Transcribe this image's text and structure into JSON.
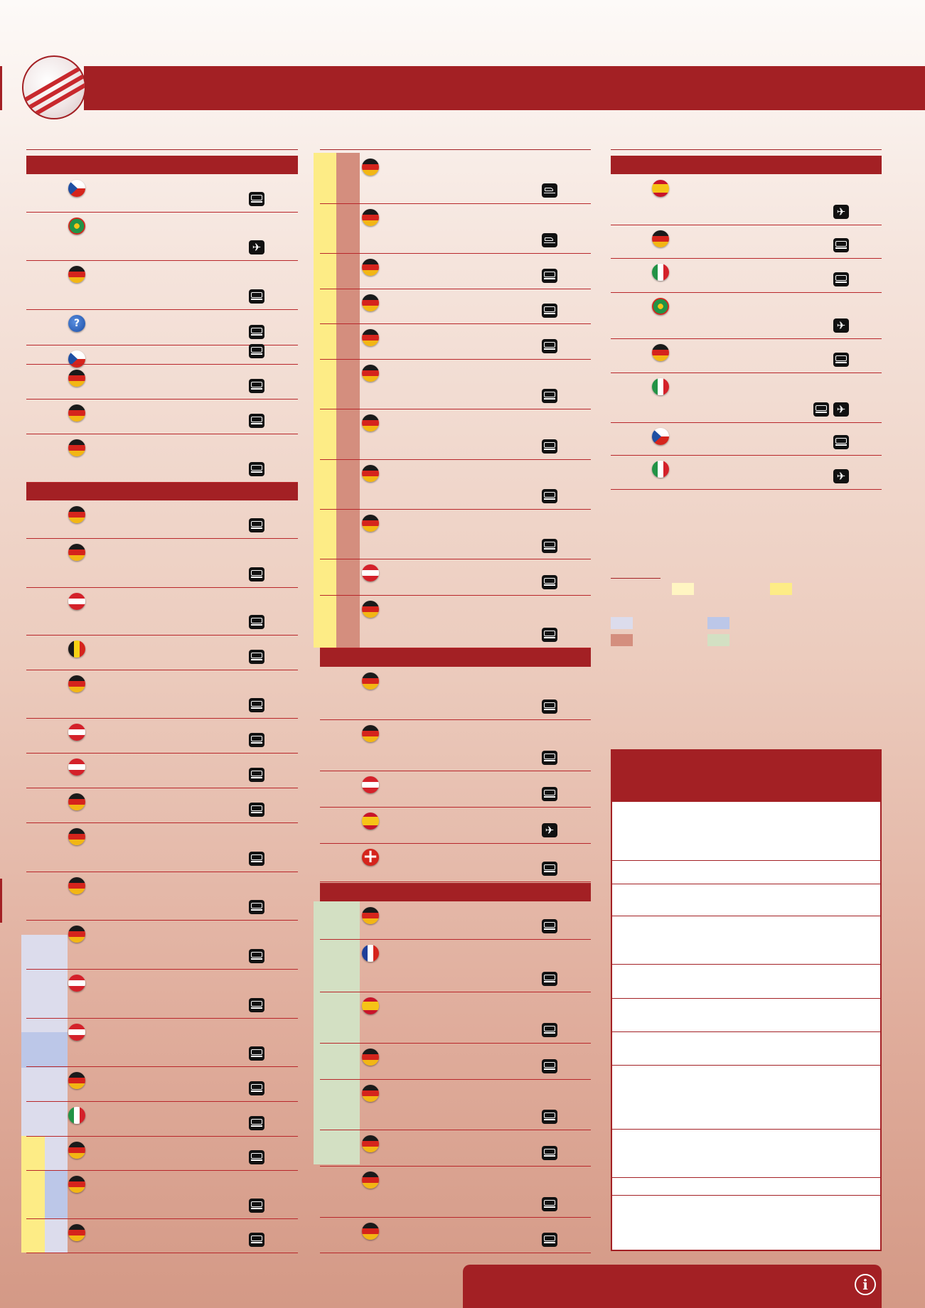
{
  "colors": {
    "brand": "#a32024",
    "yellow": "#fdec86",
    "light_yellow": "#fff5c2",
    "pale_blue": "#dcdcec",
    "mid_blue": "#bcc7e8",
    "rose": "#d48e7e",
    "green": "#d3e0c3"
  },
  "col1_a": [
    {
      "flag": "cz",
      "icons": [
        "bus"
      ]
    },
    {
      "flag": "pt",
      "icons": [
        "plane"
      ]
    },
    {
      "flag": "de",
      "icons": [
        "bus"
      ]
    },
    {
      "flag": "unk",
      "icons": [
        "bus"
      ]
    },
    {
      "flag": "cz",
      "icons": [
        "bus"
      ]
    },
    {
      "flag": "de",
      "icons": [
        "bus"
      ]
    },
    {
      "flag": "de",
      "icons": [
        "bus"
      ]
    },
    {
      "flag": "de",
      "icons": [
        "bus"
      ]
    }
  ],
  "col1_b": [
    {
      "flag": "de",
      "icons": [
        "bus"
      ]
    },
    {
      "flag": "de",
      "icons": [
        "bus"
      ]
    },
    {
      "flag": "at",
      "icons": [
        "bus"
      ]
    },
    {
      "flag": "be",
      "icons": [
        "bus"
      ]
    },
    {
      "flag": "de",
      "icons": [
        "bus"
      ]
    },
    {
      "flag": "at",
      "icons": [
        "bus"
      ]
    },
    {
      "flag": "at",
      "icons": [
        "bus"
      ]
    },
    {
      "flag": "de",
      "icons": [
        "bus"
      ]
    },
    {
      "flag": "de",
      "icons": [
        "bus"
      ]
    },
    {
      "flag": "de",
      "icons": [
        "bus"
      ]
    },
    {
      "flag": "de",
      "icons": [
        "bus"
      ]
    },
    {
      "flag": "at",
      "icons": [
        "bus"
      ]
    },
    {
      "flag": "at",
      "icons": [
        "bus"
      ]
    },
    {
      "flag": "de",
      "icons": [
        "bus"
      ]
    },
    {
      "flag": "it",
      "icons": [
        "bus"
      ]
    },
    {
      "flag": "de",
      "icons": [
        "bus"
      ]
    },
    {
      "flag": "de",
      "icons": [
        "bus"
      ]
    },
    {
      "flag": "de",
      "icons": [
        "bus"
      ]
    }
  ],
  "col2_a": [
    {
      "flag": "de",
      "icons": [
        "ship"
      ]
    },
    {
      "flag": "de",
      "icons": [
        "ship"
      ]
    },
    {
      "flag": "de",
      "icons": [
        "bus"
      ]
    },
    {
      "flag": "de",
      "icons": [
        "bus"
      ]
    },
    {
      "flag": "de",
      "icons": [
        "bus"
      ]
    },
    {
      "flag": "de",
      "icons": [
        "bus"
      ]
    },
    {
      "flag": "de",
      "icons": [
        "bus"
      ]
    },
    {
      "flag": "de",
      "icons": [
        "bus"
      ]
    },
    {
      "flag": "de",
      "icons": [
        "bus"
      ]
    },
    {
      "flag": "at",
      "icons": [
        "bus"
      ]
    },
    {
      "flag": "de",
      "icons": [
        "bus"
      ]
    }
  ],
  "col2_b": [
    {
      "flag": "de",
      "icons": [
        "bus"
      ]
    },
    {
      "flag": "de",
      "icons": [
        "bus"
      ]
    },
    {
      "flag": "at",
      "icons": [
        "bus"
      ]
    },
    {
      "flag": "es",
      "icons": [
        "plane"
      ]
    },
    {
      "flag": "ch",
      "icons": [
        "bus"
      ]
    }
  ],
  "col2_c": [
    {
      "flag": "de",
      "icons": [
        "bus"
      ]
    },
    {
      "flag": "fr",
      "icons": [
        "bus"
      ]
    },
    {
      "flag": "es",
      "icons": [
        "bus"
      ]
    },
    {
      "flag": "de",
      "icons": [
        "bus"
      ]
    },
    {
      "flag": "de",
      "icons": [
        "bus"
      ]
    },
    {
      "flag": "de",
      "icons": [
        "bus"
      ]
    },
    {
      "flag": "de",
      "icons": [
        "bus"
      ]
    },
    {
      "flag": "de",
      "icons": [
        "bus"
      ]
    }
  ],
  "col3_a": [
    {
      "flag": "es",
      "icons": [
        "plane"
      ]
    },
    {
      "flag": "de",
      "icons": [
        "bus"
      ]
    },
    {
      "flag": "it",
      "icons": [
        "bus"
      ]
    },
    {
      "flag": "pt",
      "icons": [
        "plane"
      ]
    },
    {
      "flag": "de",
      "icons": [
        "bus"
      ]
    },
    {
      "flag": "it",
      "icons": [
        "bus",
        "plane"
      ]
    },
    {
      "flag": "cz",
      "icons": [
        "bus"
      ]
    },
    {
      "flag": "it",
      "icons": [
        "plane"
      ]
    }
  ],
  "info_icon": "info-icon"
}
